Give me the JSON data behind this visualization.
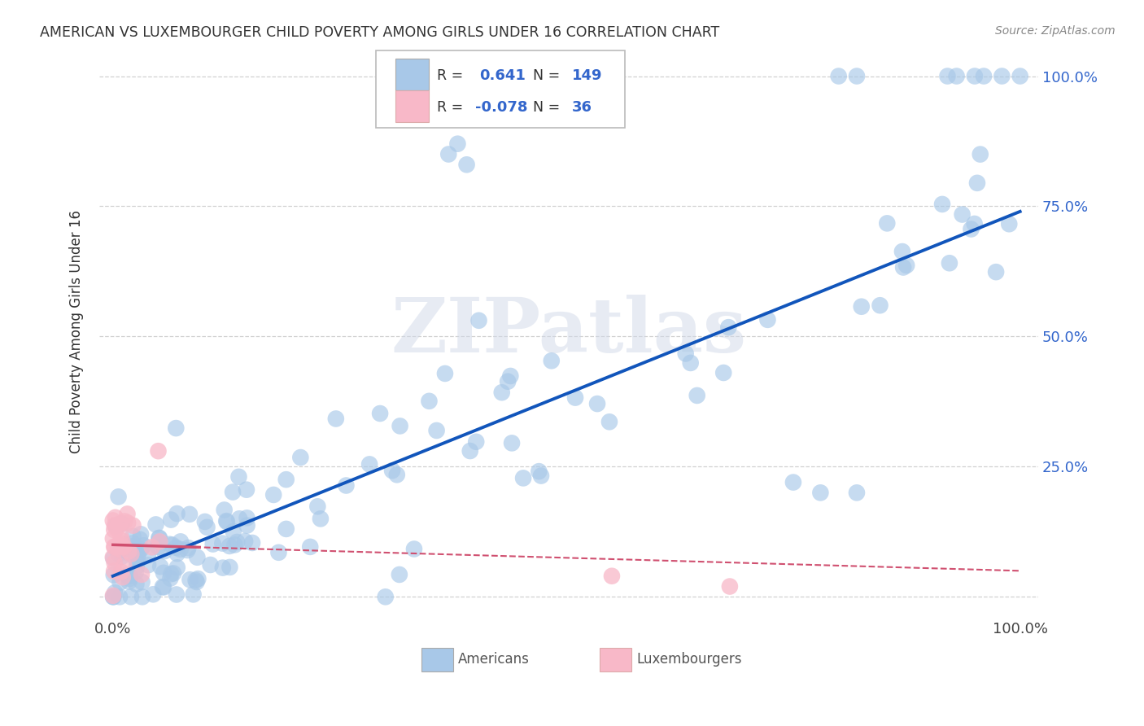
{
  "title": "AMERICAN VS LUXEMBOURGER CHILD POVERTY AMONG GIRLS UNDER 16 CORRELATION CHART",
  "source": "Source: ZipAtlas.com",
  "ylabel": "Child Poverty Among Girls Under 16",
  "american_R": 0.641,
  "american_N": 149,
  "luxembourger_R": -0.078,
  "luxembourger_N": 36,
  "american_color": "#a8c8e8",
  "american_line_color": "#1155bb",
  "luxembourger_color": "#f8b8c8",
  "luxembourger_line_color": "#d05070",
  "background_color": "#ffffff",
  "grid_color": "#cccccc",
  "watermark_text": "ZIPatlas",
  "watermark_color": "#d0d8e8",
  "am_slope": 0.7,
  "am_intercept": 0.04,
  "lux_slope": -0.05,
  "lux_intercept": 0.1,
  "right_ytick_labels": [
    "100.0%",
    "75.0%",
    "50.0%",
    "25.0%",
    ""
  ],
  "right_ytick_pos": [
    1.0,
    0.75,
    0.5,
    0.25,
    0.0
  ],
  "xtick_labels": [
    "0.0%",
    "100.0%"
  ],
  "bottom_legend_labels": [
    "Americans",
    "Luxembourgers"
  ]
}
